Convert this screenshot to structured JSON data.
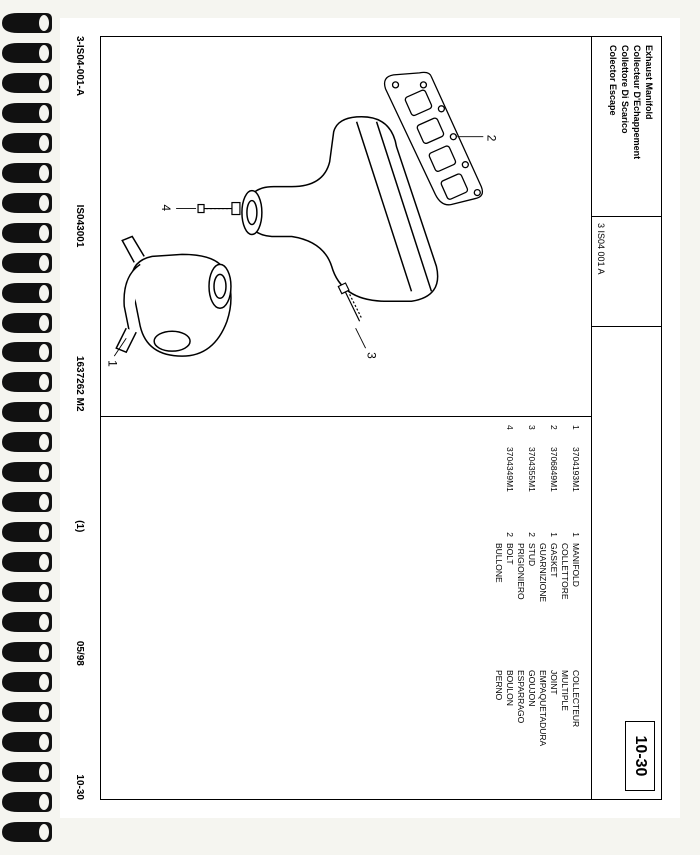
{
  "titles": {
    "en": "Exhaust Manifold",
    "fr": "Collecteur D'Echappement",
    "it": "Collettore Di Scarico",
    "es": "Colector Escape"
  },
  "diagram_code": "3 IS04 001 A",
  "page_number": "10-30",
  "parts": [
    {
      "ref": "1",
      "part_no": "3704193M1",
      "qty": "1",
      "en": "MANIFOLD",
      "it": "COLLETTORE",
      "fr": "COLLECTEUR",
      "es": "MULTIPLE"
    },
    {
      "ref": "2",
      "part_no": "3706849M1",
      "qty": "1",
      "en": "GASKET",
      "it": "GUARNIZIONE",
      "fr": "JOINT",
      "es": "EMPAQUETADURA"
    },
    {
      "ref": "3",
      "part_no": "3704355M1",
      "qty": "2",
      "en": "STUD",
      "it": "PRIGIONIERO",
      "fr": "GOUJON",
      "es": "ESPARRAGO"
    },
    {
      "ref": "4",
      "part_no": "3704349M1",
      "qty": "2",
      "en": "BOLT",
      "it": "BULLONE",
      "fr": "BOULON",
      "es": "PERNO"
    }
  ],
  "footer": {
    "left": "3-IS04-001-A",
    "mid1": "IS043001",
    "mid2": "1637262  M2",
    "mid3": "(1)",
    "date": "05/98",
    "right": "10-30"
  },
  "callouts": [
    "1",
    "2",
    "3",
    "4"
  ]
}
